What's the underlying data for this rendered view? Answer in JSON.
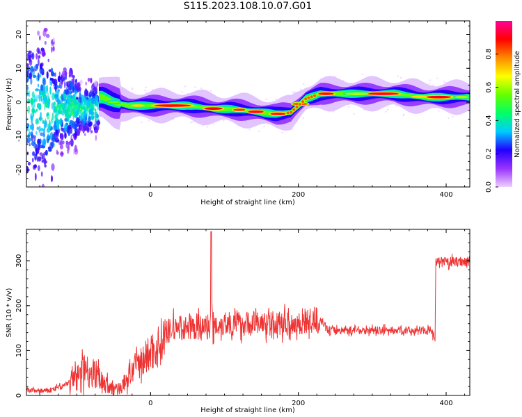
{
  "figure_title": "S115.2023.108.10.07.G01",
  "chart_data": [
    {
      "type": "heatmap",
      "title": "",
      "xlabel": "Height of straight line (km)",
      "ylabel": "Frequency (Hz)",
      "xlim": [
        -168,
        432
      ],
      "ylim": [
        -25,
        24
      ],
      "x_ticks": [
        0,
        200,
        400
      ],
      "y_ticks": [
        -20,
        -10,
        0,
        10,
        20
      ],
      "colorbar": {
        "label": "Normalized spectral amplitude",
        "range": [
          0,
          1
        ],
        "ticks": [
          0.0,
          0.2,
          0.4,
          0.6,
          0.8
        ],
        "colormap": [
          "#eecfff",
          "#9933ff",
          "#2200ff",
          "#00ccff",
          "#00ff66",
          "#66ff00",
          "#ffff00",
          "#ff8800",
          "#ff0000",
          "#ff0099"
        ]
      },
      "ridge": {
        "x": [
          -65,
          -50,
          -30,
          -10,
          10,
          30,
          50,
          70,
          90,
          110,
          130,
          150,
          170,
          190,
          210,
          230,
          250,
          270,
          290,
          310,
          330,
          350,
          370,
          390,
          410,
          432
        ],
        "y": [
          1.5,
          0,
          -1,
          -1,
          -1,
          -1,
          -1,
          -1.5,
          -2,
          -2,
          -2.5,
          -3,
          -3.5,
          -3,
          1,
          2.5,
          2.5,
          2.5,
          2.5,
          2.5,
          2.5,
          2,
          1.5,
          1.5,
          1.5,
          1.5
        ]
      },
      "noise_region_x": [
        -168,
        -70
      ]
    },
    {
      "type": "line",
      "title": "",
      "xlabel": "Height of straight line (km)",
      "ylabel": "SNR (10 * v/v)",
      "xlim": [
        -168,
        432
      ],
      "ylim": [
        0,
        370
      ],
      "x_ticks": [
        0,
        200,
        400
      ],
      "y_ticks": [
        0,
        100,
        200,
        300
      ],
      "color": "#ee3333",
      "trend": {
        "x": [
          -168,
          -140,
          -120,
          -100,
          -90,
          -80,
          -70,
          -60,
          -50,
          -40,
          -30,
          -20,
          -10,
          0,
          10,
          20,
          30,
          40,
          60,
          80,
          100,
          150,
          200,
          230,
          240,
          300,
          380,
          385,
          386,
          432
        ],
        "y": [
          12,
          10,
          20,
          40,
          60,
          55,
          40,
          25,
          12,
          18,
          40,
          65,
          80,
          95,
          110,
          135,
          150,
          150,
          150,
          155,
          160,
          160,
          160,
          170,
          145,
          145,
          145,
          120,
          295,
          300
        ]
      },
      "spike": {
        "x": 82,
        "y": 365
      }
    }
  ]
}
